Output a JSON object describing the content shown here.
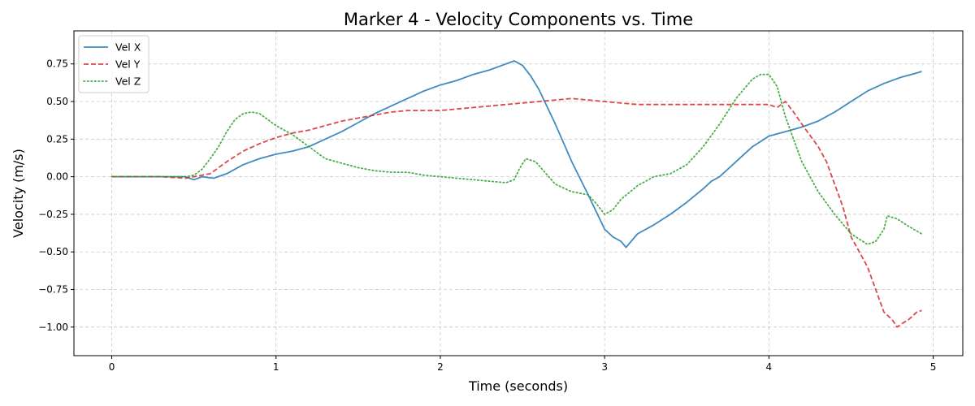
{
  "chart_data": {
    "type": "line",
    "title": "Marker 4 - Velocity Components vs. Time",
    "xlabel": "Time (seconds)",
    "ylabel": "Velocity (m/s)",
    "xlim": [
      -0.23,
      5.18
    ],
    "ylim": [
      -1.19,
      0.97
    ],
    "xticks": [
      0,
      1,
      2,
      3,
      4,
      5
    ],
    "xtick_labels": [
      "0",
      "1",
      "2",
      "3",
      "4",
      "5"
    ],
    "yticks": [
      -1.0,
      -0.75,
      -0.5,
      -0.25,
      0.0,
      0.25,
      0.5,
      0.75
    ],
    "ytick_labels": [
      "−1.00",
      "−0.75",
      "−0.50",
      "−0.25",
      "0.00",
      "0.25",
      "0.50",
      "0.75"
    ],
    "grid": true,
    "legend_position": "top-left",
    "series": [
      {
        "name": "Vel X",
        "color": "#1f77b4",
        "style": "solid",
        "points": [
          [
            0.0,
            0.0
          ],
          [
            0.25,
            0.0
          ],
          [
            0.45,
            0.0
          ],
          [
            0.5,
            -0.02
          ],
          [
            0.55,
            0.0
          ],
          [
            0.62,
            -0.01
          ],
          [
            0.7,
            0.02
          ],
          [
            0.8,
            0.08
          ],
          [
            0.9,
            0.12
          ],
          [
            1.0,
            0.15
          ],
          [
            1.1,
            0.17
          ],
          [
            1.2,
            0.2
          ],
          [
            1.3,
            0.25
          ],
          [
            1.4,
            0.3
          ],
          [
            1.5,
            0.36
          ],
          [
            1.6,
            0.42
          ],
          [
            1.7,
            0.47
          ],
          [
            1.8,
            0.52
          ],
          [
            1.9,
            0.57
          ],
          [
            2.0,
            0.61
          ],
          [
            2.1,
            0.64
          ],
          [
            2.2,
            0.68
          ],
          [
            2.3,
            0.71
          ],
          [
            2.4,
            0.75
          ],
          [
            2.45,
            0.77
          ],
          [
            2.5,
            0.74
          ],
          [
            2.55,
            0.67
          ],
          [
            2.6,
            0.58
          ],
          [
            2.7,
            0.35
          ],
          [
            2.8,
            0.1
          ],
          [
            2.9,
            -0.12
          ],
          [
            3.0,
            -0.35
          ],
          [
            3.05,
            -0.4
          ],
          [
            3.1,
            -0.43
          ],
          [
            3.13,
            -0.47
          ],
          [
            3.2,
            -0.38
          ],
          [
            3.3,
            -0.32
          ],
          [
            3.4,
            -0.25
          ],
          [
            3.5,
            -0.17
          ],
          [
            3.6,
            -0.08
          ],
          [
            3.65,
            -0.03
          ],
          [
            3.7,
            0.0
          ],
          [
            3.8,
            0.1
          ],
          [
            3.9,
            0.2
          ],
          [
            4.0,
            0.27
          ],
          [
            4.1,
            0.3
          ],
          [
            4.2,
            0.33
          ],
          [
            4.3,
            0.37
          ],
          [
            4.4,
            0.43
          ],
          [
            4.5,
            0.5
          ],
          [
            4.6,
            0.57
          ],
          [
            4.7,
            0.62
          ],
          [
            4.8,
            0.66
          ],
          [
            4.9,
            0.69
          ],
          [
            4.93,
            0.7
          ]
        ]
      },
      {
        "name": "Vel Y",
        "color": "#d62728",
        "style": "dashed",
        "points": [
          [
            0.0,
            0.0
          ],
          [
            0.3,
            0.0
          ],
          [
            0.45,
            -0.01
          ],
          [
            0.5,
            0.0
          ],
          [
            0.6,
            0.02
          ],
          [
            0.7,
            0.1
          ],
          [
            0.8,
            0.17
          ],
          [
            0.9,
            0.22
          ],
          [
            1.0,
            0.26
          ],
          [
            1.1,
            0.29
          ],
          [
            1.2,
            0.31
          ],
          [
            1.3,
            0.34
          ],
          [
            1.4,
            0.37
          ],
          [
            1.5,
            0.39
          ],
          [
            1.6,
            0.41
          ],
          [
            1.7,
            0.43
          ],
          [
            1.8,
            0.44
          ],
          [
            1.9,
            0.44
          ],
          [
            2.0,
            0.44
          ],
          [
            2.2,
            0.46
          ],
          [
            2.4,
            0.48
          ],
          [
            2.6,
            0.5
          ],
          [
            2.8,
            0.52
          ],
          [
            2.9,
            0.51
          ],
          [
            3.0,
            0.5
          ],
          [
            3.1,
            0.49
          ],
          [
            3.2,
            0.48
          ],
          [
            3.4,
            0.48
          ],
          [
            3.6,
            0.48
          ],
          [
            3.8,
            0.48
          ],
          [
            4.0,
            0.48
          ],
          [
            4.05,
            0.46
          ],
          [
            4.1,
            0.5
          ],
          [
            4.15,
            0.43
          ],
          [
            4.2,
            0.35
          ],
          [
            4.3,
            0.2
          ],
          [
            4.35,
            0.1
          ],
          [
            4.4,
            -0.05
          ],
          [
            4.45,
            -0.2
          ],
          [
            4.5,
            -0.4
          ],
          [
            4.55,
            -0.5
          ],
          [
            4.6,
            -0.6
          ],
          [
            4.65,
            -0.75
          ],
          [
            4.7,
            -0.9
          ],
          [
            4.75,
            -0.95
          ],
          [
            4.78,
            -1.0
          ],
          [
            4.82,
            -0.97
          ],
          [
            4.85,
            -0.95
          ],
          [
            4.9,
            -0.9
          ],
          [
            4.93,
            -0.89
          ]
        ]
      },
      {
        "name": "Vel Z",
        "color": "#2ca02c",
        "style": "dotted",
        "points": [
          [
            0.0,
            0.0
          ],
          [
            0.3,
            0.0
          ],
          [
            0.45,
            0.0
          ],
          [
            0.5,
            0.01
          ],
          [
            0.55,
            0.05
          ],
          [
            0.6,
            0.12
          ],
          [
            0.65,
            0.2
          ],
          [
            0.7,
            0.3
          ],
          [
            0.75,
            0.38
          ],
          [
            0.8,
            0.42
          ],
          [
            0.85,
            0.43
          ],
          [
            0.9,
            0.42
          ],
          [
            0.95,
            0.38
          ],
          [
            1.0,
            0.34
          ],
          [
            1.1,
            0.28
          ],
          [
            1.2,
            0.2
          ],
          [
            1.3,
            0.12
          ],
          [
            1.4,
            0.09
          ],
          [
            1.5,
            0.06
          ],
          [
            1.6,
            0.04
          ],
          [
            1.7,
            0.03
          ],
          [
            1.8,
            0.03
          ],
          [
            1.9,
            0.01
          ],
          [
            2.0,
            0.0
          ],
          [
            2.1,
            -0.01
          ],
          [
            2.2,
            -0.02
          ],
          [
            2.3,
            -0.03
          ],
          [
            2.4,
            -0.04
          ],
          [
            2.45,
            -0.02
          ],
          [
            2.48,
            0.05
          ],
          [
            2.52,
            0.12
          ],
          [
            2.58,
            0.1
          ],
          [
            2.62,
            0.05
          ],
          [
            2.7,
            -0.05
          ],
          [
            2.8,
            -0.1
          ],
          [
            2.9,
            -0.12
          ],
          [
            2.95,
            -0.18
          ],
          [
            3.0,
            -0.25
          ],
          [
            3.05,
            -0.22
          ],
          [
            3.1,
            -0.15
          ],
          [
            3.2,
            -0.06
          ],
          [
            3.3,
            0.0
          ],
          [
            3.4,
            0.02
          ],
          [
            3.5,
            0.08
          ],
          [
            3.6,
            0.2
          ],
          [
            3.7,
            0.35
          ],
          [
            3.8,
            0.52
          ],
          [
            3.9,
            0.65
          ],
          [
            3.95,
            0.68
          ],
          [
            4.0,
            0.68
          ],
          [
            4.05,
            0.6
          ],
          [
            4.1,
            0.4
          ],
          [
            4.2,
            0.1
          ],
          [
            4.3,
            -0.1
          ],
          [
            4.4,
            -0.25
          ],
          [
            4.5,
            -0.38
          ],
          [
            4.6,
            -0.45
          ],
          [
            4.65,
            -0.43
          ],
          [
            4.7,
            -0.35
          ],
          [
            4.72,
            -0.26
          ],
          [
            4.78,
            -0.28
          ],
          [
            4.85,
            -0.33
          ],
          [
            4.93,
            -0.38
          ]
        ]
      }
    ]
  }
}
